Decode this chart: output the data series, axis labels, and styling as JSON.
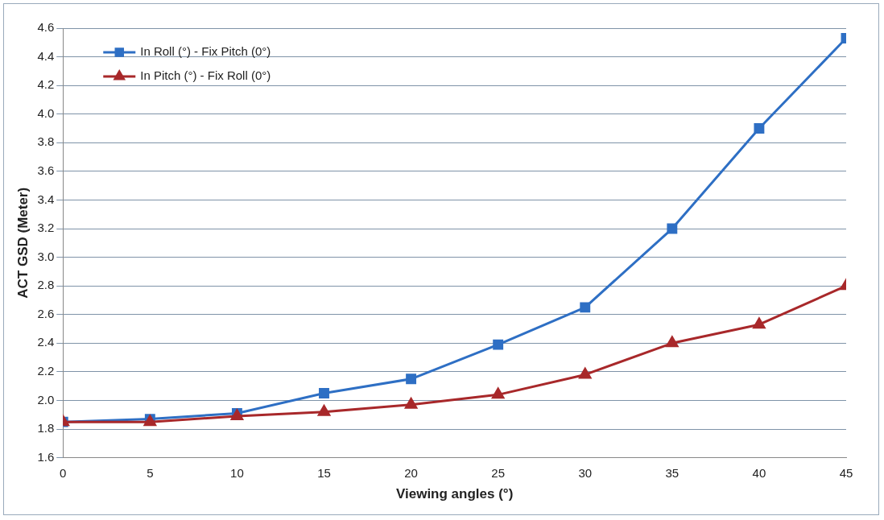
{
  "chart_data": {
    "type": "line",
    "xlabel": "Viewing angles (°)",
    "ylabel": "ACT GSD (Meter)",
    "x": [
      0,
      5,
      10,
      15,
      20,
      25,
      30,
      35,
      40,
      45
    ],
    "series": [
      {
        "name": "In Roll (°) - Fix Pitch (0°)",
        "color": "#2e6fc4",
        "marker": "square",
        "values": [
          1.85,
          1.87,
          1.91,
          2.05,
          2.15,
          2.39,
          2.65,
          3.2,
          3.9,
          4.53
        ]
      },
      {
        "name": "In Pitch (°) - Fix Roll (0°)",
        "color": "#a8282a",
        "marker": "triangle",
        "values": [
          1.85,
          1.85,
          1.89,
          1.92,
          1.97,
          2.04,
          2.18,
          2.4,
          2.53,
          2.8
        ]
      }
    ],
    "xlim": [
      0,
      45
    ],
    "xticks": [
      0,
      5,
      10,
      15,
      20,
      25,
      30,
      35,
      40,
      45
    ],
    "ylim": [
      1.6,
      4.6
    ],
    "yticks": [
      1.6,
      1.8,
      {
        "value": 2,
        "label": "2.0"
      },
      2.2,
      2.4,
      2.6,
      2.8,
      {
        "value": 3,
        "label": "3.0"
      },
      3.2,
      3.4,
      3.6,
      3.8,
      {
        "value": 4,
        "label": "4.0"
      },
      4.2,
      4.4,
      4.6
    ],
    "grid": "y",
    "legend": "top left",
    "line_style": "solid"
  }
}
